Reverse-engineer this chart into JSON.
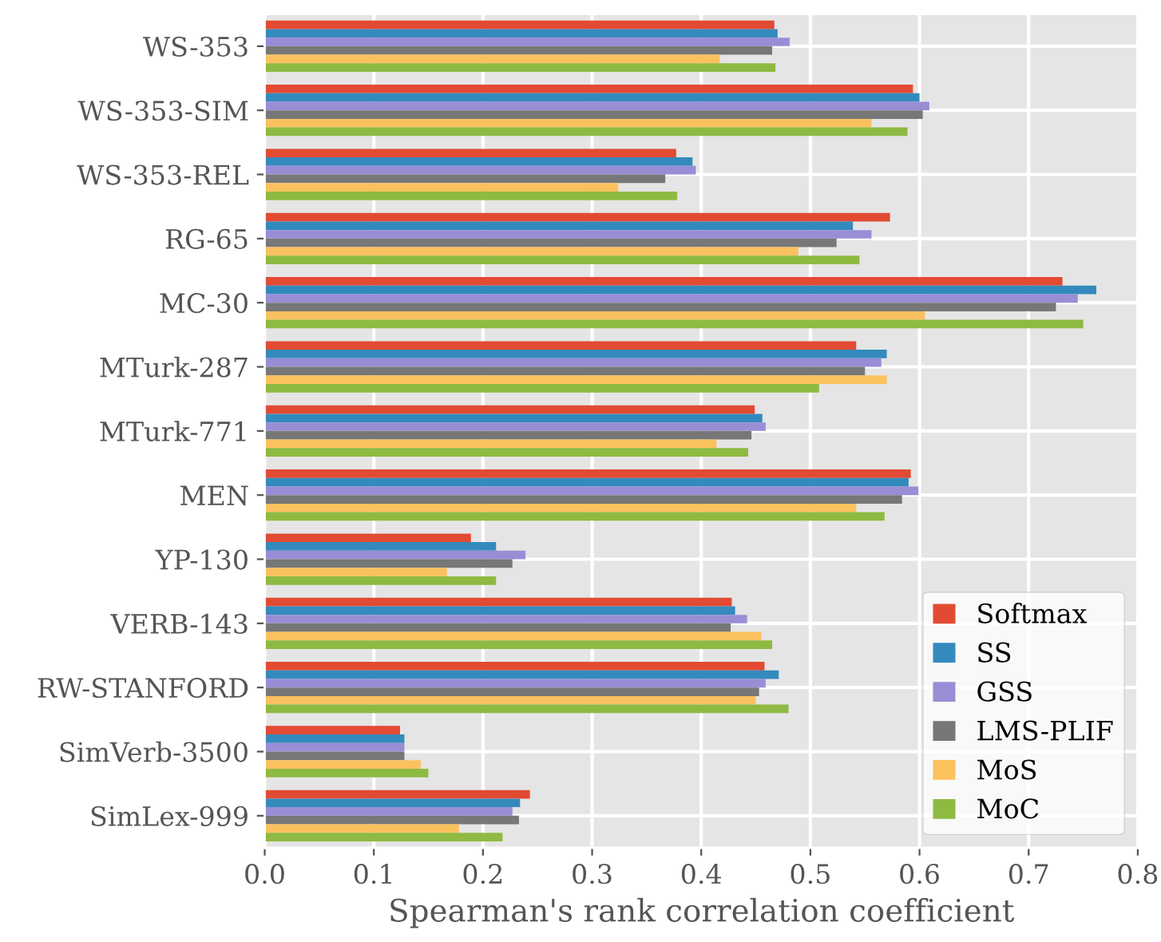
{
  "chart_data": {
    "type": "bar",
    "orientation": "horizontal",
    "xlabel": "Spearman's rank correlation coefficient",
    "categories": [
      "WS-353",
      "WS-353-SIM",
      "WS-353-REL",
      "RG-65",
      "MC-30",
      "MTurk-287",
      "MTurk-771",
      "MEN",
      "YP-130",
      "VERB-143",
      "RW-STANFORD",
      "SimVerb-3500",
      "SimLex-999"
    ],
    "series": [
      {
        "name": "Softmax",
        "color": "#e24a33",
        "values": [
          0.467,
          0.594,
          0.377,
          0.573,
          0.731,
          0.542,
          0.449,
          0.592,
          0.189,
          0.428,
          0.458,
          0.124,
          0.243
        ]
      },
      {
        "name": "SS",
        "color": "#348abd",
        "values": [
          0.47,
          0.6,
          0.392,
          0.539,
          0.762,
          0.57,
          0.456,
          0.59,
          0.212,
          0.431,
          0.471,
          0.128,
          0.234
        ]
      },
      {
        "name": "GSS",
        "color": "#988ed5",
        "values": [
          0.481,
          0.609,
          0.395,
          0.556,
          0.745,
          0.565,
          0.459,
          0.599,
          0.239,
          0.442,
          0.459,
          0.128,
          0.227
        ]
      },
      {
        "name": "LMS-PLIF",
        "color": "#777777",
        "values": [
          0.465,
          0.603,
          0.367,
          0.524,
          0.725,
          0.55,
          0.446,
          0.584,
          0.227,
          0.427,
          0.453,
          0.128,
          0.233
        ]
      },
      {
        "name": "MoS",
        "color": "#fbc15e",
        "values": [
          0.417,
          0.556,
          0.324,
          0.489,
          0.605,
          0.57,
          0.414,
          0.542,
          0.167,
          0.455,
          0.45,
          0.143,
          0.178
        ]
      },
      {
        "name": "MoC",
        "color": "#8eba42",
        "values": [
          0.468,
          0.589,
          0.378,
          0.545,
          0.75,
          0.508,
          0.443,
          0.568,
          0.212,
          0.465,
          0.48,
          0.15,
          0.218
        ]
      }
    ],
    "xlim": [
      0,
      0.8
    ],
    "xticks": [
      {
        "value": 0,
        "label": "0.0"
      },
      0.1,
      0.2,
      0.3,
      0.4,
      0.5,
      0.6,
      0.7,
      0.8
    ],
    "grid": true,
    "legend": "bottom right"
  }
}
